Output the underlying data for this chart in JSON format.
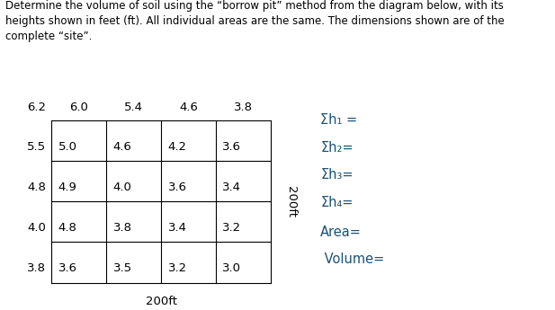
{
  "title_text": "Determine the volume of soil using the “borrow pit” method from the diagram below, with its\nheights shown in feet (ft). All individual areas are the same. The dimensions shown are of the\ncomplete “site”.",
  "grid_values": [
    [
      6.2,
      6.0,
      5.4,
      4.6,
      3.8
    ],
    [
      5.5,
      5.0,
      4.6,
      4.2,
      3.6
    ],
    [
      4.8,
      4.9,
      4.0,
      3.6,
      3.4
    ],
    [
      4.0,
      4.8,
      3.8,
      3.4,
      3.2
    ],
    [
      3.8,
      3.6,
      3.5,
      3.2,
      3.0
    ]
  ],
  "x_label": "200ft",
  "y_label": "200ft",
  "annotations": [
    "Σh₁ =",
    "Σh₂=",
    "Σh₃=",
    "Σh₄=",
    "Area=",
    " Volume="
  ],
  "bg_color": "#ffffff",
  "font_size_title": 8.5,
  "font_size_grid": 9.5,
  "font_size_annot": 10.5,
  "annot_color": "#1a5276"
}
